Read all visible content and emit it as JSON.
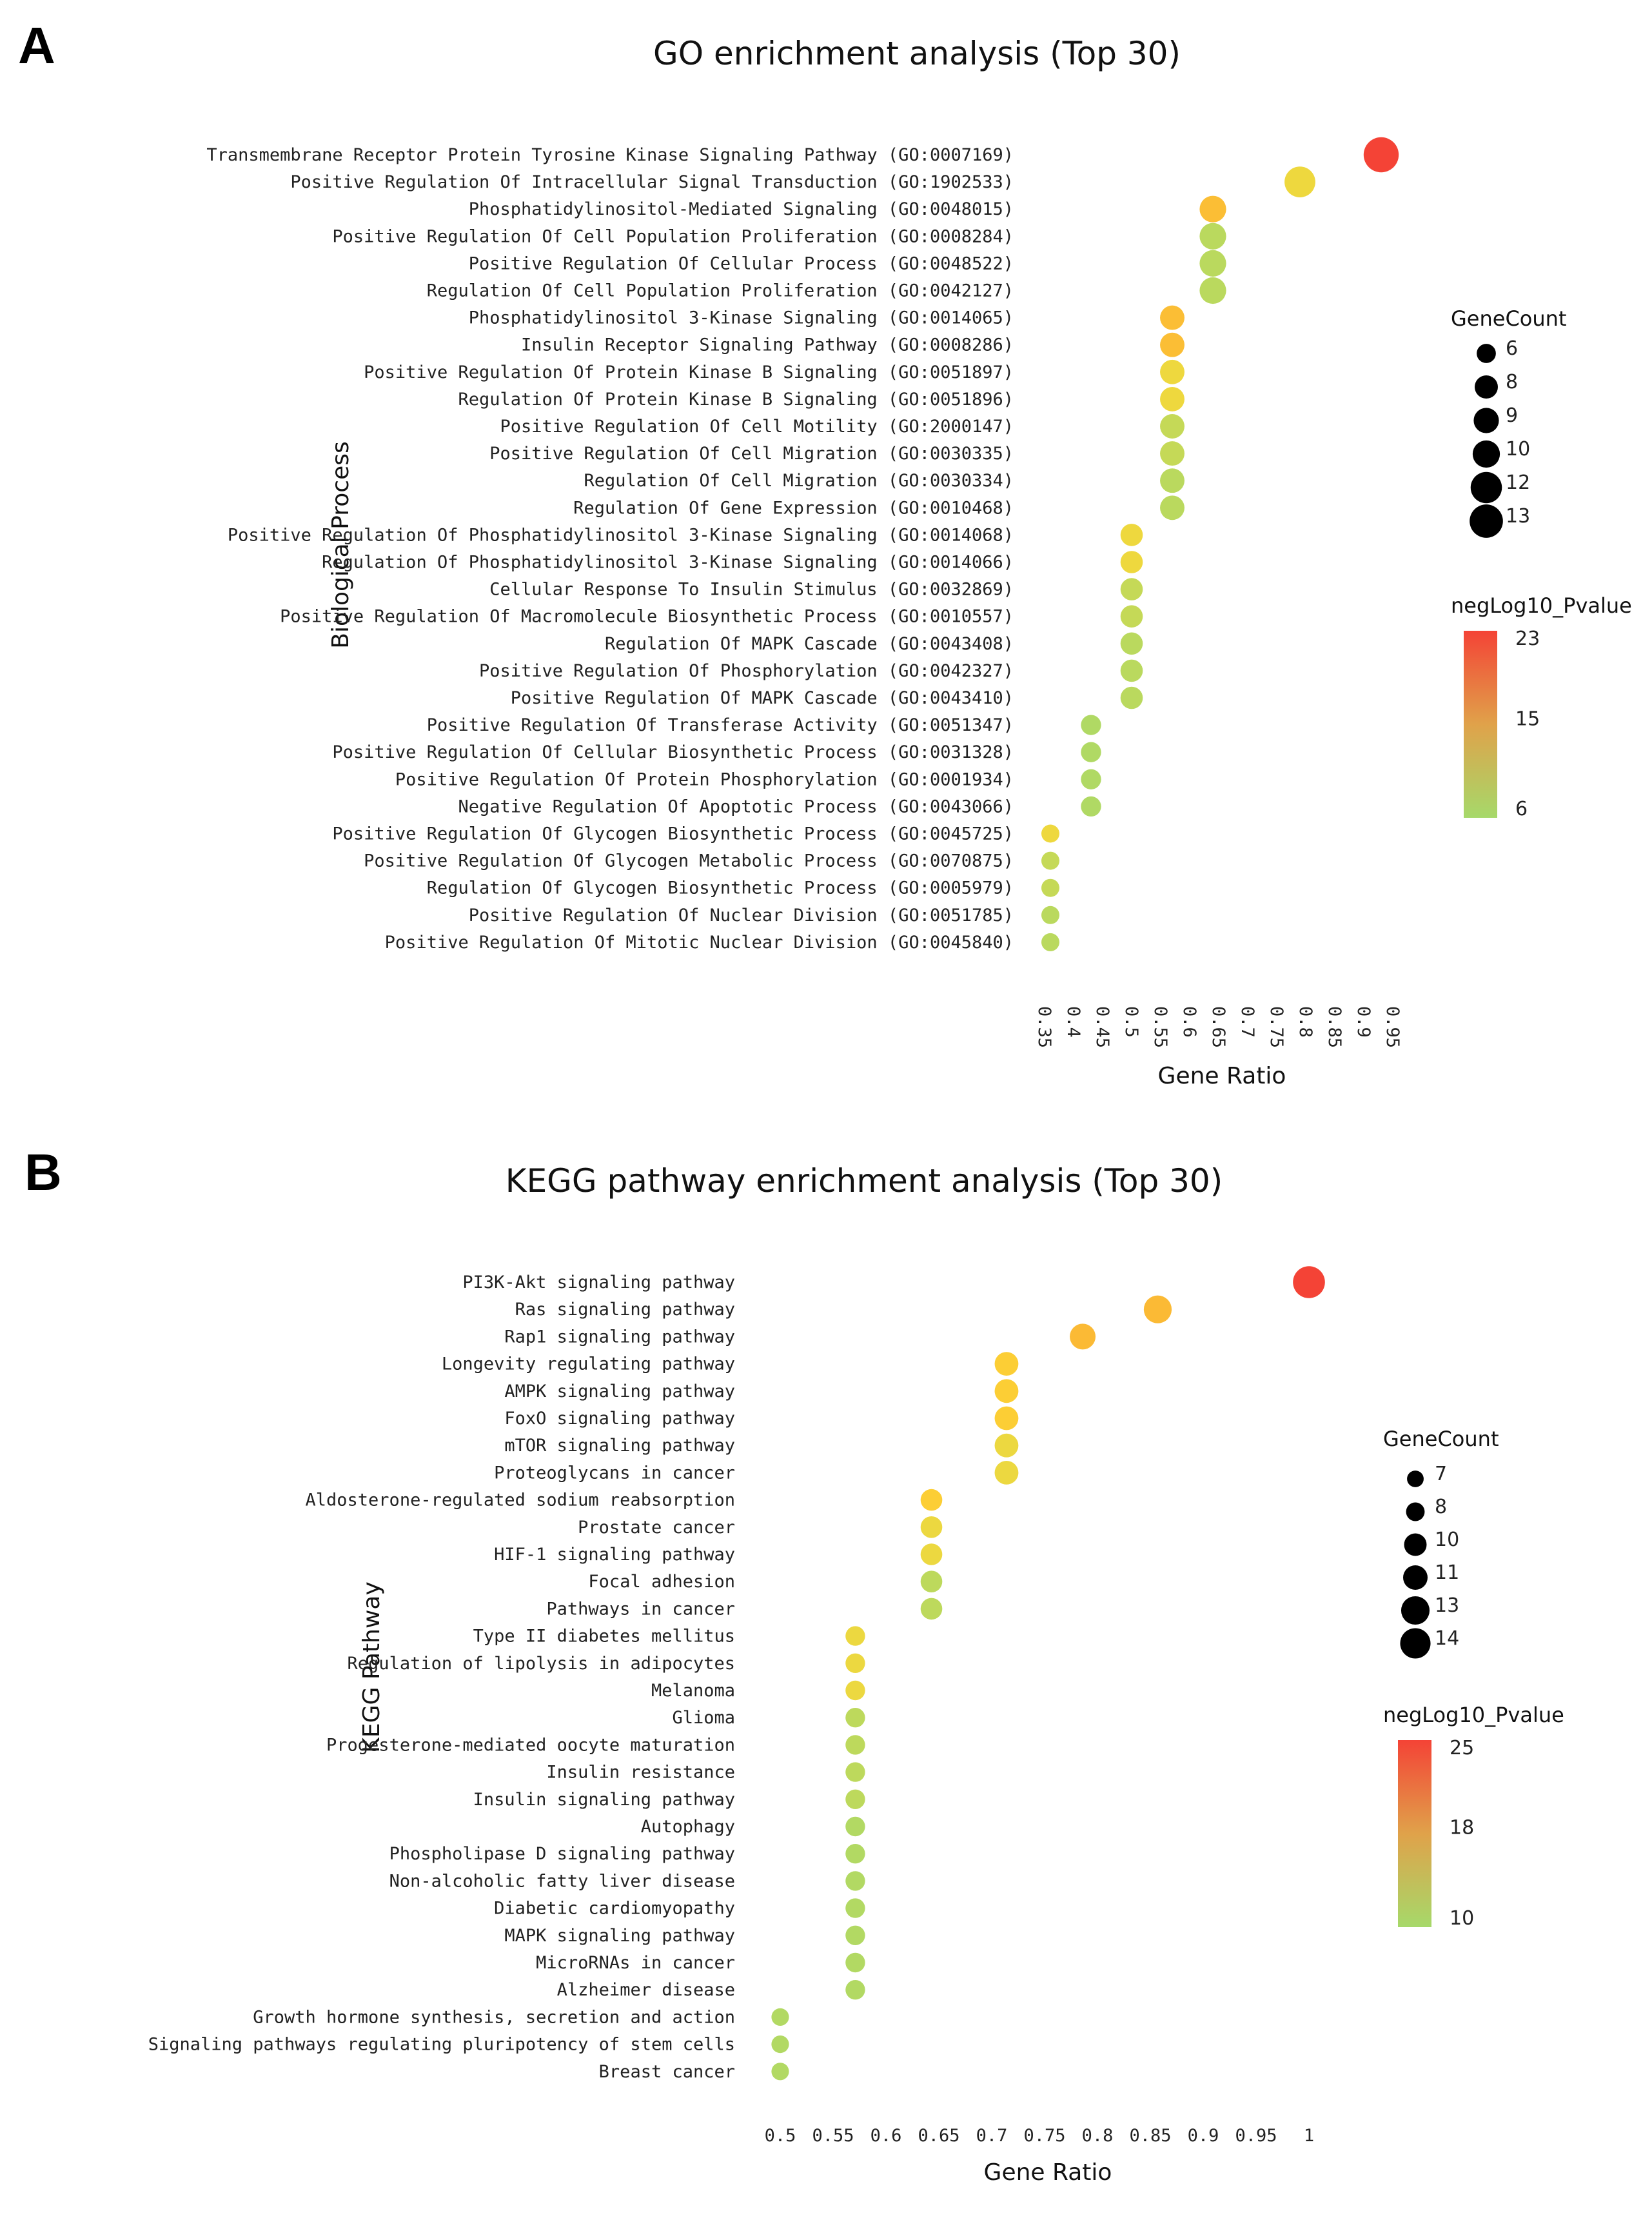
{
  "chart_data": [
    {
      "panel_letter": "A",
      "type": "scatter",
      "title": "GO enrichment analysis (Top 30)",
      "xlabel": "Gene Ratio",
      "ylabel": "Biological Process",
      "xlim": [
        0.35,
        0.95
      ],
      "x_ticks": [
        "0.35",
        "0.4",
        "0.45",
        "0.5",
        "0.55",
        "0.6",
        "0.65",
        "0.7",
        "0.75",
        "0.8",
        "0.85",
        "0.9",
        "0.95"
      ],
      "x_tick_values": [
        0.35,
        0.4,
        0.45,
        0.5,
        0.55,
        0.6,
        0.65,
        0.7,
        0.75,
        0.8,
        0.85,
        0.9,
        0.95
      ],
      "x_tick_rotation": "vertical",
      "size_legend": {
        "title": "GeneCount",
        "values": [
          6,
          8,
          9,
          10,
          12,
          13
        ]
      },
      "color_legend": {
        "title": "negLog10_Pvalue",
        "min": 6,
        "max": 23,
        "ticks": [
          23,
          15,
          6
        ],
        "color_low": "#a6d96a",
        "color_mid": "#fdd835",
        "color_high": "#f44336"
      },
      "terms": [
        {
          "label": "Transmembrane Receptor Protein Tyrosine Kinase Signaling Pathway (GO:0007169)",
          "ratio": 0.93,
          "count": 13,
          "neglog10p": 23
        },
        {
          "label": "Positive Regulation Of Intracellular Signal Transduction (GO:1902533)",
          "ratio": 0.79,
          "count": 11,
          "neglog10p": 13
        },
        {
          "label": "Phosphatidylinositol-Mediated Signaling (GO:0048015)",
          "ratio": 0.64,
          "count": 9,
          "neglog10p": 16
        },
        {
          "label": "Positive Regulation Of Cell Population Proliferation (GO:0008284)",
          "ratio": 0.64,
          "count": 9,
          "neglog10p": 8
        },
        {
          "label": "Positive Regulation Of Cellular Process (GO:0048522)",
          "ratio": 0.64,
          "count": 9,
          "neglog10p": 8
        },
        {
          "label": "Regulation Of Cell Population Proliferation (GO:0042127)",
          "ratio": 0.64,
          "count": 9,
          "neglog10p": 8
        },
        {
          "label": "Phosphatidylinositol 3-Kinase Signaling (GO:0014065)",
          "ratio": 0.57,
          "count": 8,
          "neglog10p": 16
        },
        {
          "label": "Insulin Receptor Signaling Pathway (GO:0008286)",
          "ratio": 0.57,
          "count": 8,
          "neglog10p": 16
        },
        {
          "label": "Positive Regulation Of Protein Kinase B Signaling (GO:0051897)",
          "ratio": 0.57,
          "count": 8,
          "neglog10p": 13
        },
        {
          "label": "Regulation Of Protein Kinase B Signaling (GO:0051896)",
          "ratio": 0.57,
          "count": 8,
          "neglog10p": 13
        },
        {
          "label": "Positive Regulation Of Cell Motility (GO:2000147)",
          "ratio": 0.57,
          "count": 8,
          "neglog10p": 9
        },
        {
          "label": "Positive Regulation Of Cell Migration (GO:0030335)",
          "ratio": 0.57,
          "count": 8,
          "neglog10p": 9
        },
        {
          "label": "Regulation Of Cell Migration (GO:0030334)",
          "ratio": 0.57,
          "count": 8,
          "neglog10p": 8
        },
        {
          "label": "Regulation Of Gene Expression (GO:0010468)",
          "ratio": 0.57,
          "count": 8,
          "neglog10p": 8
        },
        {
          "label": "Positive Regulation Of Phosphatidylinositol 3-Kinase Signaling (GO:0014068)",
          "ratio": 0.5,
          "count": 7,
          "neglog10p": 13
        },
        {
          "label": "Regulation Of Phosphatidylinositol 3-Kinase Signaling (GO:0014066)",
          "ratio": 0.5,
          "count": 7,
          "neglog10p": 13
        },
        {
          "label": "Cellular Response To Insulin Stimulus (GO:0032869)",
          "ratio": 0.5,
          "count": 7,
          "neglog10p": 9
        },
        {
          "label": "Positive Regulation Of Macromolecule Biosynthetic Process (GO:0010557)",
          "ratio": 0.5,
          "count": 7,
          "neglog10p": 9
        },
        {
          "label": "Regulation Of MAPK Cascade (GO:0043408)",
          "ratio": 0.5,
          "count": 7,
          "neglog10p": 8
        },
        {
          "label": "Positive Regulation Of Phosphorylation (GO:0042327)",
          "ratio": 0.5,
          "count": 7,
          "neglog10p": 8
        },
        {
          "label": "Positive Regulation Of MAPK Cascade (GO:0043410)",
          "ratio": 0.5,
          "count": 7,
          "neglog10p": 8
        },
        {
          "label": "Positive Regulation Of Transferase Activity (GO:0051347)",
          "ratio": 0.43,
          "count": 6,
          "neglog10p": 7
        },
        {
          "label": "Positive Regulation Of Cellular Biosynthetic Process (GO:0031328)",
          "ratio": 0.43,
          "count": 6,
          "neglog10p": 7
        },
        {
          "label": "Positive Regulation Of Protein Phosphorylation (GO:0001934)",
          "ratio": 0.43,
          "count": 6,
          "neglog10p": 7
        },
        {
          "label": "Negative Regulation Of Apoptotic Process (GO:0043066)",
          "ratio": 0.43,
          "count": 6,
          "neglog10p": 7
        },
        {
          "label": "Positive Regulation Of Glycogen Biosynthetic Process (GO:0045725)",
          "ratio": 0.36,
          "count": 5,
          "neglog10p": 13
        },
        {
          "label": "Positive Regulation Of Glycogen Metabolic Process (GO:0070875)",
          "ratio": 0.36,
          "count": 5,
          "neglog10p": 9
        },
        {
          "label": "Regulation Of Glycogen Biosynthetic Process (GO:0005979)",
          "ratio": 0.36,
          "count": 5,
          "neglog10p": 9
        },
        {
          "label": "Positive Regulation Of Nuclear Division (GO:0051785)",
          "ratio": 0.36,
          "count": 5,
          "neglog10p": 8
        },
        {
          "label": "Positive Regulation Of Mitotic Nuclear Division (GO:0045840)",
          "ratio": 0.36,
          "count": 5,
          "neglog10p": 8
        }
      ]
    },
    {
      "panel_letter": "B",
      "type": "scatter",
      "title": "KEGG pathway enrichment analysis (Top 30)",
      "xlabel": "Gene Ratio",
      "ylabel": "KEGG Pathway",
      "xlim": [
        0.5,
        1
      ],
      "x_ticks": [
        "0.5",
        "0.55",
        "0.6",
        "0.65",
        "0.7",
        "0.75",
        "0.8",
        "0.85",
        "0.9",
        "0.95",
        "1"
      ],
      "x_tick_values": [
        0.5,
        0.55,
        0.6,
        0.65,
        0.7,
        0.75,
        0.8,
        0.85,
        0.9,
        0.95,
        1
      ],
      "x_tick_rotation": "horizontal",
      "size_legend": {
        "title": "GeneCount",
        "values": [
          7,
          8,
          10,
          11,
          13,
          14
        ]
      },
      "color_legend": {
        "title": "negLog10_Pvalue",
        "min": 10,
        "max": 25,
        "ticks": [
          25,
          18,
          10
        ],
        "color_low": "#a6d96a",
        "color_mid": "#fdd835",
        "color_high": "#f44336"
      },
      "terms": [
        {
          "label": "PI3K-Akt signaling pathway",
          "ratio": 1.0,
          "count": 14,
          "neglog10p": 25
        },
        {
          "label": "Ras signaling pathway",
          "ratio": 0.857,
          "count": 12,
          "neglog10p": 19
        },
        {
          "label": "Rap1 signaling pathway",
          "ratio": 0.786,
          "count": 11,
          "neglog10p": 19
        },
        {
          "label": "Longevity regulating pathway",
          "ratio": 0.714,
          "count": 10,
          "neglog10p": 18
        },
        {
          "label": "AMPK signaling pathway",
          "ratio": 0.714,
          "count": 10,
          "neglog10p": 18
        },
        {
          "label": "FoxO signaling pathway",
          "ratio": 0.714,
          "count": 10,
          "neglog10p": 18
        },
        {
          "label": "mTOR signaling pathway",
          "ratio": 0.714,
          "count": 10,
          "neglog10p": 16
        },
        {
          "label": "Proteoglycans in cancer",
          "ratio": 0.714,
          "count": 10,
          "neglog10p": 16
        },
        {
          "label": "Aldosterone-regulated sodium reabsorption",
          "ratio": 0.643,
          "count": 9,
          "neglog10p": 18
        },
        {
          "label": "Prostate cancer",
          "ratio": 0.643,
          "count": 9,
          "neglog10p": 16
        },
        {
          "label": "HIF-1 signaling pathway",
          "ratio": 0.643,
          "count": 9,
          "neglog10p": 16
        },
        {
          "label": "Focal adhesion",
          "ratio": 0.643,
          "count": 9,
          "neglog10p": 12
        },
        {
          "label": "Pathways in cancer",
          "ratio": 0.643,
          "count": 9,
          "neglog10p": 12
        },
        {
          "label": "Type II diabetes mellitus",
          "ratio": 0.571,
          "count": 8,
          "neglog10p": 16
        },
        {
          "label": "Regulation of lipolysis in adipocytes",
          "ratio": 0.571,
          "count": 8,
          "neglog10p": 16
        },
        {
          "label": "Melanoma",
          "ratio": 0.571,
          "count": 8,
          "neglog10p": 16
        },
        {
          "label": "Glioma",
          "ratio": 0.571,
          "count": 8,
          "neglog10p": 12
        },
        {
          "label": "Progesterone-mediated oocyte maturation",
          "ratio": 0.571,
          "count": 8,
          "neglog10p": 12
        },
        {
          "label": "Insulin resistance",
          "ratio": 0.571,
          "count": 8,
          "neglog10p": 12
        },
        {
          "label": "Insulin signaling pathway",
          "ratio": 0.571,
          "count": 8,
          "neglog10p": 12
        },
        {
          "label": "Autophagy",
          "ratio": 0.571,
          "count": 8,
          "neglog10p": 11
        },
        {
          "label": "Phospholipase D signaling pathway",
          "ratio": 0.571,
          "count": 8,
          "neglog10p": 11
        },
        {
          "label": "Non-alcoholic fatty liver disease",
          "ratio": 0.571,
          "count": 8,
          "neglog10p": 11
        },
        {
          "label": "Diabetic cardiomyopathy",
          "ratio": 0.571,
          "count": 8,
          "neglog10p": 11
        },
        {
          "label": "MAPK signaling pathway",
          "ratio": 0.571,
          "count": 8,
          "neglog10p": 11
        },
        {
          "label": "MicroRNAs in cancer",
          "ratio": 0.571,
          "count": 8,
          "neglog10p": 11
        },
        {
          "label": "Alzheimer disease",
          "ratio": 0.571,
          "count": 8,
          "neglog10p": 11
        },
        {
          "label": "Growth hormone synthesis, secretion and action",
          "ratio": 0.5,
          "count": 7,
          "neglog10p": 11
        },
        {
          "label": "Signaling pathways regulating pluripotency of stem cells",
          "ratio": 0.5,
          "count": 7,
          "neglog10p": 11
        },
        {
          "label": "Breast cancer",
          "ratio": 0.5,
          "count": 7,
          "neglog10p": 11
        }
      ]
    }
  ]
}
